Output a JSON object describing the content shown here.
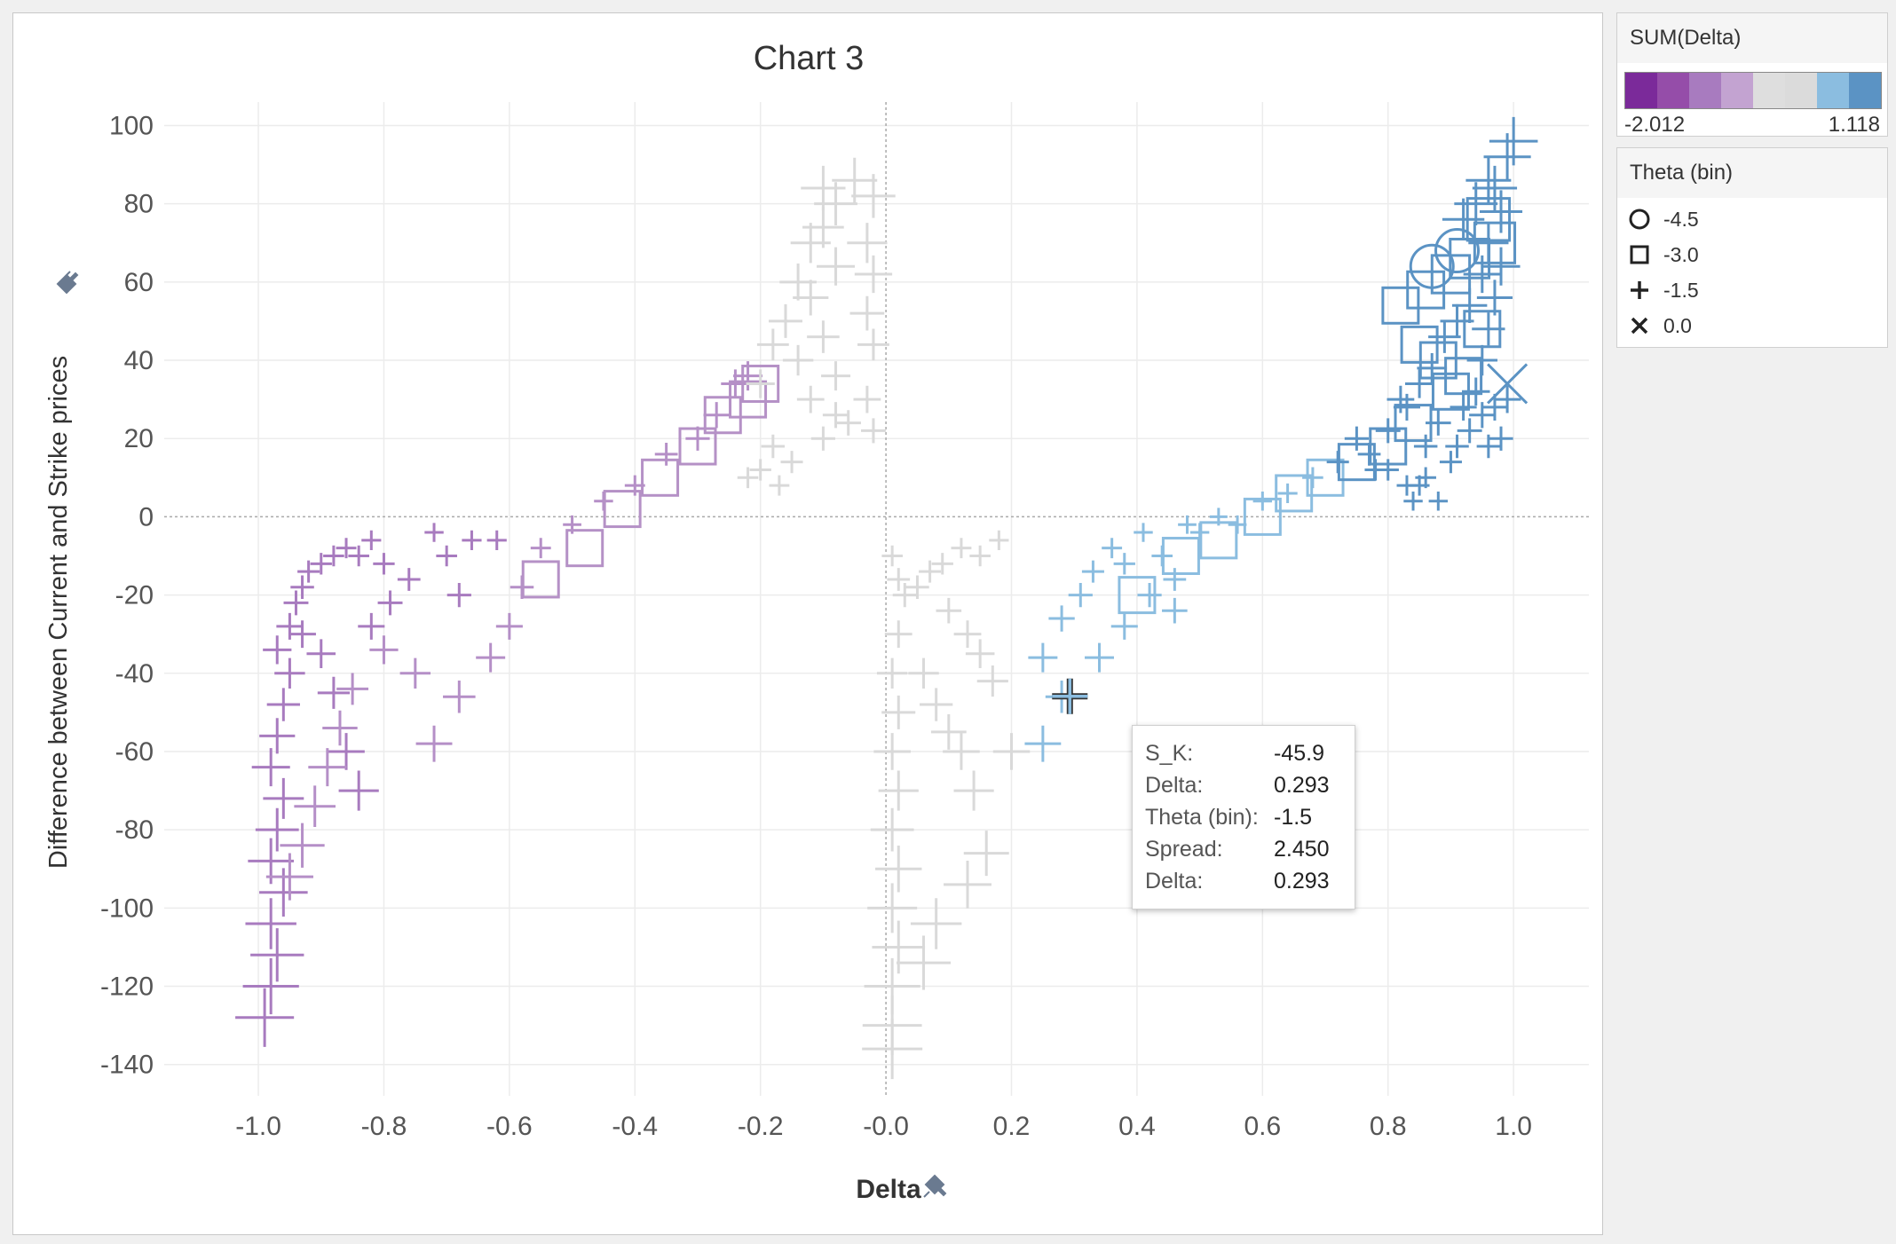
{
  "chart_data": {
    "type": "scatter",
    "title": "Chart 3",
    "xlabel": "Delta",
    "ylabel": "Difference between Current and Strike prices",
    "xlim": [
      -1.15,
      1.12
    ],
    "ylim": [
      -148,
      106
    ],
    "x_ticks": [
      -1.0,
      -0.8,
      -0.6,
      -0.4,
      -0.2,
      -0.0,
      0.2,
      0.4,
      0.6,
      0.8,
      1.0
    ],
    "x_tick_labels": [
      "-1.0",
      "-0.8",
      "-0.6",
      "-0.4",
      "-0.2",
      "-0.0",
      "0.2",
      "0.4",
      "0.6",
      "0.8",
      "1.0"
    ],
    "y_ticks": [
      100,
      80,
      60,
      40,
      20,
      0,
      -20,
      -40,
      -60,
      -80,
      -100,
      -120,
      -140
    ],
    "y_tick_labels": [
      "100",
      "80",
      "60",
      "40",
      "20",
      "0",
      "-20",
      "-40",
      "-60",
      "-80",
      "-100",
      "-120",
      "-140"
    ],
    "grid": true,
    "color_field": "SUM(Delta)",
    "color_range": [
      -2.012,
      1.118
    ],
    "shape_field": "Theta (bin)",
    "series": [
      {
        "name": "deep-purple",
        "color": "#a87bbf",
        "shape": "+",
        "points": [
          [
            -0.99,
            -128
          ],
          [
            -0.98,
            -120
          ],
          [
            -0.97,
            -112
          ],
          [
            -0.98,
            -104
          ],
          [
            -0.96,
            -96
          ],
          [
            -0.98,
            -88
          ],
          [
            -0.97,
            -80
          ],
          [
            -0.96,
            -72
          ],
          [
            -0.98,
            -64
          ],
          [
            -0.97,
            -56
          ],
          [
            -0.96,
            -48
          ],
          [
            -0.95,
            -40
          ],
          [
            -0.97,
            -34
          ],
          [
            -0.95,
            -28
          ],
          [
            -0.94,
            -22
          ],
          [
            -0.93,
            -18
          ],
          [
            -0.92,
            -14
          ],
          [
            -0.9,
            -12
          ],
          [
            -0.88,
            -10
          ],
          [
            -0.86,
            -8
          ],
          [
            -0.84,
            -10
          ],
          [
            -0.82,
            -6
          ],
          [
            -0.8,
            -12
          ],
          [
            -0.93,
            -30
          ],
          [
            -0.9,
            -35
          ],
          [
            -0.88,
            -45
          ],
          [
            -0.86,
            -60
          ],
          [
            -0.84,
            -70
          ],
          [
            -0.82,
            -28
          ],
          [
            -0.79,
            -22
          ],
          [
            -0.76,
            -16
          ],
          [
            -0.72,
            -4
          ],
          [
            -0.7,
            -10
          ],
          [
            -0.68,
            -20
          ],
          [
            -0.66,
            -6
          ],
          [
            -0.62,
            -6
          ]
        ]
      },
      {
        "name": "mid-purple",
        "color": "#b58fc7",
        "shape": "+",
        "points": [
          [
            -0.95,
            -92
          ],
          [
            -0.93,
            -84
          ],
          [
            -0.91,
            -74
          ],
          [
            -0.89,
            -64
          ],
          [
            -0.87,
            -54
          ],
          [
            -0.85,
            -44
          ],
          [
            -0.8,
            -34
          ],
          [
            -0.75,
            -40
          ],
          [
            -0.72,
            -58
          ],
          [
            -0.68,
            -46
          ],
          [
            -0.63,
            -36
          ],
          [
            -0.6,
            -28
          ],
          [
            -0.58,
            -18
          ],
          [
            -0.55,
            -8
          ],
          [
            -0.5,
            -2
          ],
          [
            -0.45,
            4
          ],
          [
            -0.4,
            8
          ],
          [
            -0.35,
            16
          ],
          [
            -0.3,
            20
          ],
          [
            -0.27,
            26
          ],
          [
            -0.24,
            34
          ],
          [
            -0.22,
            36
          ]
        ]
      },
      {
        "name": "mid-purple-squares",
        "color": "#b591c6",
        "shape": "square",
        "points": [
          [
            -0.55,
            -16
          ],
          [
            -0.48,
            -8
          ],
          [
            -0.42,
            2
          ],
          [
            -0.36,
            10
          ],
          [
            -0.3,
            18
          ],
          [
            -0.26,
            26
          ],
          [
            -0.22,
            30
          ],
          [
            -0.2,
            34
          ]
        ]
      },
      {
        "name": "neutral-gray",
        "color": "#d9d9d9",
        "shape": "+",
        "points": [
          [
            -0.1,
            84
          ],
          [
            -0.08,
            80
          ],
          [
            -0.1,
            74
          ],
          [
            -0.12,
            70
          ],
          [
            -0.08,
            64
          ],
          [
            -0.14,
            60
          ],
          [
            -0.12,
            56
          ],
          [
            -0.16,
            50
          ],
          [
            -0.1,
            46
          ],
          [
            -0.18,
            44
          ],
          [
            -0.14,
            40
          ],
          [
            -0.08,
            36
          ],
          [
            -0.2,
            34
          ],
          [
            -0.12,
            30
          ],
          [
            -0.08,
            26
          ],
          [
            -0.06,
            24
          ],
          [
            -0.1,
            20
          ],
          [
            -0.18,
            18
          ],
          [
            -0.15,
            14
          ],
          [
            -0.2,
            12
          ],
          [
            -0.22,
            10
          ],
          [
            -0.17,
            8
          ],
          [
            -0.05,
            86
          ],
          [
            -0.02,
            82
          ],
          [
            -0.03,
            70
          ],
          [
            -0.02,
            62
          ],
          [
            -0.03,
            52
          ],
          [
            -0.02,
            44
          ],
          [
            -0.03,
            30
          ],
          [
            -0.02,
            22
          ],
          [
            0.01,
            -10
          ],
          [
            0.02,
            -16
          ],
          [
            0.03,
            -20
          ],
          [
            0.05,
            -18
          ],
          [
            0.07,
            -14
          ],
          [
            0.09,
            -12
          ],
          [
            0.12,
            -8
          ],
          [
            0.15,
            -10
          ],
          [
            0.18,
            -6
          ],
          [
            0.02,
            -30
          ],
          [
            0.01,
            -40
          ],
          [
            0.02,
            -50
          ],
          [
            0.01,
            -60
          ],
          [
            0.02,
            -70
          ],
          [
            0.01,
            -80
          ],
          [
            0.02,
            -90
          ],
          [
            0.01,
            -100
          ],
          [
            0.02,
            -110
          ],
          [
            0.01,
            -120
          ],
          [
            0.01,
            -130
          ],
          [
            0.01,
            -136
          ],
          [
            0.06,
            -40
          ],
          [
            0.08,
            -48
          ],
          [
            0.1,
            -55
          ],
          [
            0.12,
            -60
          ],
          [
            0.14,
            -70
          ],
          [
            0.17,
            -42
          ],
          [
            0.2,
            -60
          ],
          [
            0.16,
            -86
          ],
          [
            0.13,
            -94
          ],
          [
            0.08,
            -104
          ],
          [
            0.06,
            -114
          ],
          [
            0.1,
            -24
          ],
          [
            0.13,
            -30
          ],
          [
            0.15,
            -35
          ]
        ]
      },
      {
        "name": "light-blue",
        "color": "#8bbde0",
        "shape": "+",
        "points": [
          [
            0.25,
            -58
          ],
          [
            0.28,
            -46
          ],
          [
            0.34,
            -36
          ],
          [
            0.25,
            -36
          ],
          [
            0.28,
            -26
          ],
          [
            0.31,
            -20
          ],
          [
            0.33,
            -14
          ],
          [
            0.36,
            -8
          ],
          [
            0.38,
            -12
          ],
          [
            0.41,
            -4
          ],
          [
            0.44,
            -10
          ],
          [
            0.46,
            -16
          ],
          [
            0.48,
            -2
          ],
          [
            0.5,
            -4
          ],
          [
            0.53,
            0
          ],
          [
            0.56,
            -2
          ],
          [
            0.6,
            4
          ],
          [
            0.64,
            6
          ],
          [
            0.68,
            10
          ],
          [
            0.38,
            -28
          ],
          [
            0.42,
            -20
          ],
          [
            0.46,
            -24
          ]
        ]
      },
      {
        "name": "light-blue-squares",
        "color": "#8bbde0",
        "shape": "square",
        "points": [
          [
            0.4,
            -20
          ],
          [
            0.47,
            -10
          ],
          [
            0.53,
            -6
          ],
          [
            0.6,
            0
          ],
          [
            0.65,
            6
          ],
          [
            0.7,
            10
          ]
        ]
      },
      {
        "name": "steel-blue",
        "color": "#5b93c4",
        "shape": "+",
        "points": [
          [
            0.72,
            14
          ],
          [
            0.75,
            20
          ],
          [
            0.78,
            12
          ],
          [
            0.8,
            22
          ],
          [
            0.83,
            28
          ],
          [
            0.85,
            8
          ],
          [
            0.86,
            18
          ],
          [
            0.88,
            24
          ],
          [
            0.9,
            14
          ],
          [
            0.92,
            28
          ],
          [
            0.94,
            32
          ],
          [
            0.95,
            40
          ],
          [
            0.96,
            48
          ],
          [
            0.97,
            56
          ],
          [
            0.98,
            64
          ],
          [
            0.96,
            70
          ],
          [
            0.98,
            78
          ],
          [
            0.97,
            84
          ],
          [
            0.99,
            92
          ],
          [
            1.0,
            96
          ],
          [
            0.95,
            26
          ],
          [
            0.97,
            28
          ],
          [
            0.99,
            30
          ],
          [
            0.98,
            20
          ],
          [
            0.96,
            18
          ],
          [
            0.93,
            22
          ],
          [
            0.91,
            18
          ],
          [
            0.88,
            4
          ],
          [
            0.86,
            10
          ],
          [
            0.83,
            8
          ],
          [
            0.8,
            12
          ],
          [
            0.77,
            16
          ],
          [
            0.82,
            30
          ],
          [
            0.85,
            34
          ],
          [
            0.87,
            38
          ],
          [
            0.89,
            46
          ],
          [
            0.91,
            50
          ],
          [
            0.93,
            54
          ],
          [
            0.95,
            62
          ],
          [
            0.92,
            76
          ],
          [
            0.94,
            80
          ],
          [
            0.96,
            86
          ],
          [
            0.84,
            4
          ]
        ]
      },
      {
        "name": "steel-blue-squares",
        "color": "#5b93c4",
        "shape": "square",
        "points": [
          [
            0.82,
            54
          ],
          [
            0.86,
            58
          ],
          [
            0.9,
            62
          ],
          [
            0.93,
            66
          ],
          [
            0.85,
            44
          ],
          [
            0.88,
            40
          ],
          [
            0.92,
            36
          ],
          [
            0.95,
            48
          ],
          [
            0.9,
            32
          ],
          [
            0.84,
            24
          ],
          [
            0.8,
            18
          ],
          [
            0.75,
            14
          ],
          [
            0.97,
            70
          ],
          [
            0.96,
            76
          ]
        ]
      },
      {
        "name": "circles",
        "color": "#5b93c4",
        "shape": "circle",
        "points": [
          [
            0.87,
            64
          ],
          [
            0.91,
            68
          ]
        ]
      },
      {
        "name": "crosses",
        "color": "#5b93c4",
        "shape": "x",
        "points": [
          [
            0.99,
            34
          ]
        ]
      },
      {
        "name": "highlighted",
        "color": "#8bbde0",
        "shape": "+",
        "points": [
          [
            0.293,
            -45.9
          ]
        ]
      }
    ]
  },
  "legend_color": {
    "title": "SUM(Delta)",
    "min_label": "-2.012",
    "max_label": "1.118",
    "ramp": [
      "#7b2a9a",
      "#954da9",
      "#a87bbf",
      "#c3a3d1",
      "#dedede",
      "#dbdbdb",
      "#8bbde0",
      "#5b93c4"
    ]
  },
  "legend_shape": {
    "title": "Theta (bin)",
    "items": [
      {
        "shape": "circle",
        "label": "-4.5"
      },
      {
        "shape": "square",
        "label": "-3.0"
      },
      {
        "shape": "plus",
        "label": "-1.5"
      },
      {
        "shape": "x",
        "label": "0.0"
      }
    ]
  },
  "tooltip": {
    "rows": [
      {
        "key": "S_K:",
        "value": "-45.9"
      },
      {
        "key": "Delta:",
        "value": "0.293"
      },
      {
        "key": "Theta (bin):",
        "value": "-1.5"
      },
      {
        "key": "Spread:",
        "value": "2.450"
      },
      {
        "key": "Delta:",
        "value": "0.293"
      }
    ]
  }
}
